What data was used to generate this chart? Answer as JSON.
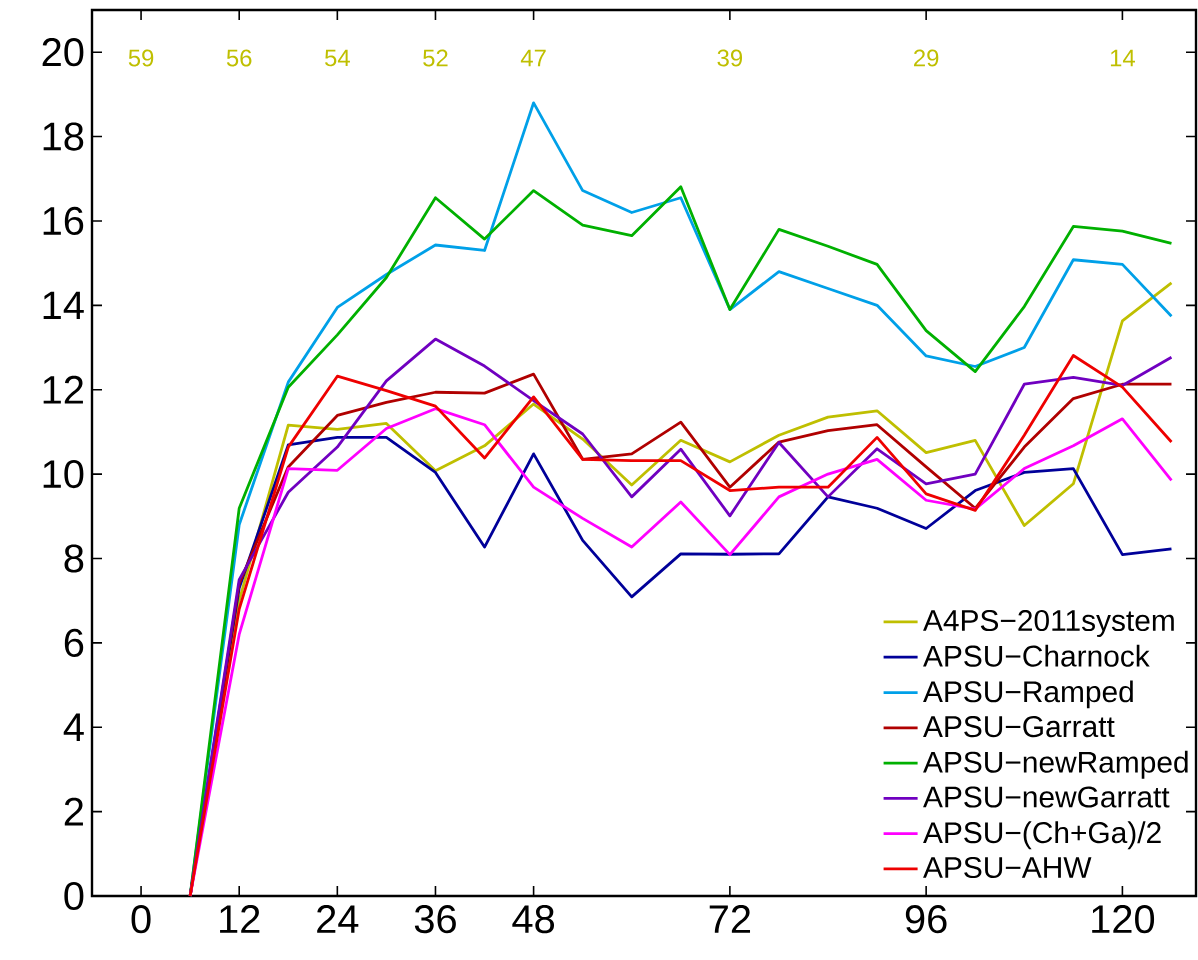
{
  "chart_data": {
    "type": "line",
    "x": [
      6,
      12,
      18,
      24,
      30,
      36,
      42,
      48,
      54,
      60,
      66,
      72,
      78,
      84,
      90,
      96,
      102,
      108,
      114,
      120,
      126
    ],
    "series": [
      {
        "name": "A4PS−2011system",
        "color": "#bfbf00",
        "values": [
          0,
          7.0,
          11.16,
          11.06,
          11.2,
          10.08,
          10.67,
          11.66,
          10.83,
          9.74,
          10.8,
          10.29,
          10.92,
          11.35,
          11.5,
          10.51,
          10.8,
          8.78,
          9.77,
          13.63,
          14.53
        ]
      },
      {
        "name": "APSU−Charnock",
        "color": "#000099",
        "values": [
          0,
          7.3,
          10.69,
          10.87,
          10.87,
          10.04,
          8.27,
          10.48,
          8.43,
          7.09,
          8.11,
          8.1,
          8.11,
          9.46,
          9.19,
          8.71,
          9.61,
          10.04,
          10.13,
          8.09,
          8.23
        ]
      },
      {
        "name": "APSU−Ramped",
        "color": "#00a0e8",
        "values": [
          0,
          8.8,
          12.18,
          13.95,
          14.73,
          15.43,
          15.3,
          18.8,
          16.72,
          16.2,
          16.55,
          13.9,
          14.8,
          14.4,
          14.0,
          12.8,
          12.55,
          13.0,
          15.08,
          14.97,
          13.74
        ]
      },
      {
        "name": "APSU−Garratt",
        "color": "#b00000",
        "values": [
          0,
          7.4,
          10.17,
          11.39,
          11.7,
          11.94,
          11.92,
          12.37,
          10.35,
          10.48,
          11.23,
          9.69,
          10.76,
          11.03,
          11.17,
          10.17,
          9.19,
          10.64,
          11.79,
          12.13,
          12.13
        ]
      },
      {
        "name": "APSU−newRamped",
        "color": "#00b000",
        "values": [
          0,
          9.19,
          12.06,
          13.3,
          14.66,
          16.55,
          15.57,
          16.72,
          15.9,
          15.65,
          16.81,
          13.9,
          15.8,
          15.4,
          14.97,
          13.4,
          12.43,
          13.97,
          15.87,
          15.76,
          15.47
        ]
      },
      {
        "name": "APSU−newGarratt",
        "color": "#7000c0",
        "values": [
          0,
          7.5,
          9.57,
          10.64,
          12.21,
          13.2,
          12.56,
          11.74,
          10.95,
          9.46,
          10.59,
          9.01,
          10.75,
          9.46,
          10.6,
          9.77,
          10.0,
          12.13,
          12.29,
          12.1,
          12.77
        ]
      },
      {
        "name": "APSU−(Ch+Ga)/2",
        "color": "#ff00ff",
        "values": [
          0,
          6.2,
          10.13,
          10.09,
          11.08,
          11.55,
          11.17,
          9.69,
          8.95,
          8.27,
          9.34,
          8.09,
          9.46,
          10.0,
          10.35,
          9.38,
          9.17,
          10.13,
          10.67,
          11.31,
          9.85
        ]
      },
      {
        "name": "APSU−AHW",
        "color": "#ee0000",
        "values": [
          0,
          6.8,
          10.64,
          12.32,
          11.98,
          11.61,
          10.38,
          11.83,
          10.35,
          10.32,
          10.32,
          9.61,
          9.69,
          9.69,
          10.87,
          9.53,
          9.14,
          10.92,
          12.81,
          12.06,
          10.76
        ]
      }
    ],
    "xlim": [
      -6,
      129
    ],
    "ylim": [
      0,
      21
    ],
    "xticks": [
      0,
      12,
      24,
      36,
      48,
      72,
      96,
      120
    ],
    "yticks": [
      0,
      2,
      4,
      6,
      8,
      10,
      12,
      14,
      16,
      18,
      20
    ],
    "legend": "bottom right",
    "grid": false,
    "marker": "none",
    "line_style": "solid",
    "annotations": [
      "59",
      "56",
      "54",
      "52",
      "47",
      "39",
      "29",
      "14"
    ]
  }
}
